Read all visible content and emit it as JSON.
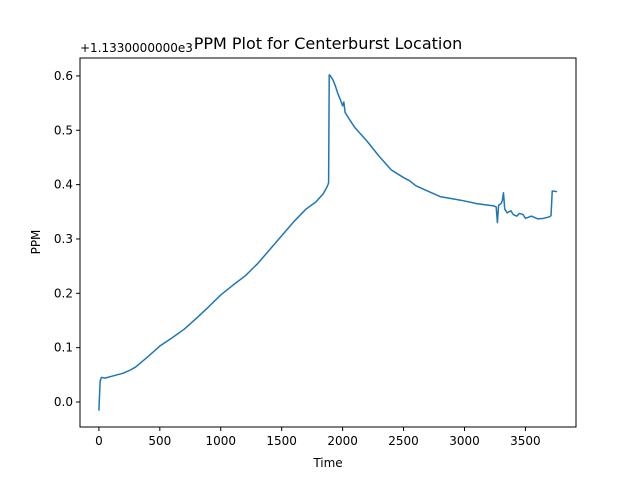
{
  "chart_data": {
    "type": "line",
    "title": "PPM Plot for Centerburst Location",
    "xlabel": "Time",
    "ylabel": "PPM",
    "offset_label": "+1.1330000000e3",
    "xlim": [
      -155,
      3915
    ],
    "ylim": [
      -0.046,
      0.633
    ],
    "x_ticks": [
      0,
      500,
      1000,
      1500,
      2000,
      2500,
      3000,
      3500
    ],
    "x_tick_labels": [
      "0",
      "500",
      "1000",
      "1500",
      "2000",
      "2500",
      "3000",
      "3500"
    ],
    "y_ticks": [
      0.0,
      0.1,
      0.2,
      0.3,
      0.4,
      0.5,
      0.6
    ],
    "y_tick_labels": [
      "0.0",
      "0.1",
      "0.2",
      "0.3",
      "0.4",
      "0.5",
      "0.6"
    ],
    "grid": false,
    "legend": "none",
    "line_color": "#1f77b4",
    "series": [
      {
        "x": [
          0,
          10,
          20,
          30,
          50,
          100,
          150,
          200,
          250,
          300,
          400,
          500,
          600,
          700,
          800,
          900,
          1000,
          1100,
          1200,
          1300,
          1400,
          1500,
          1600,
          1700,
          1780,
          1840,
          1870,
          1880,
          1885,
          1890,
          1900,
          1920,
          1940,
          1960,
          1980,
          2000,
          2010,
          2020,
          2050,
          2100,
          2200,
          2300,
          2400,
          2500,
          2550,
          2600,
          2700,
          2800,
          2900,
          3000,
          3100,
          3200,
          3240,
          3260,
          3270,
          3280,
          3300,
          3310,
          3320,
          3330,
          3350,
          3380,
          3400,
          3430,
          3450,
          3480,
          3500,
          3550,
          3600,
          3650,
          3700,
          3710,
          3720,
          3730,
          3760
        ],
        "y": [
          -0.016,
          0.038,
          0.045,
          0.045,
          0.044,
          0.047,
          0.05,
          0.053,
          0.058,
          0.064,
          0.083,
          0.103,
          0.118,
          0.134,
          0.154,
          0.175,
          0.197,
          0.215,
          0.232,
          0.254,
          0.28,
          0.306,
          0.332,
          0.355,
          0.368,
          0.383,
          0.395,
          0.4,
          0.404,
          0.602,
          0.6,
          0.593,
          0.582,
          0.568,
          0.557,
          0.545,
          0.552,
          0.533,
          0.522,
          0.505,
          0.48,
          0.452,
          0.427,
          0.413,
          0.407,
          0.398,
          0.388,
          0.378,
          0.374,
          0.37,
          0.365,
          0.362,
          0.361,
          0.359,
          0.33,
          0.362,
          0.365,
          0.37,
          0.385,
          0.355,
          0.348,
          0.352,
          0.345,
          0.342,
          0.347,
          0.345,
          0.338,
          0.342,
          0.337,
          0.338,
          0.341,
          0.343,
          0.388,
          0.388,
          0.387
        ]
      }
    ]
  }
}
